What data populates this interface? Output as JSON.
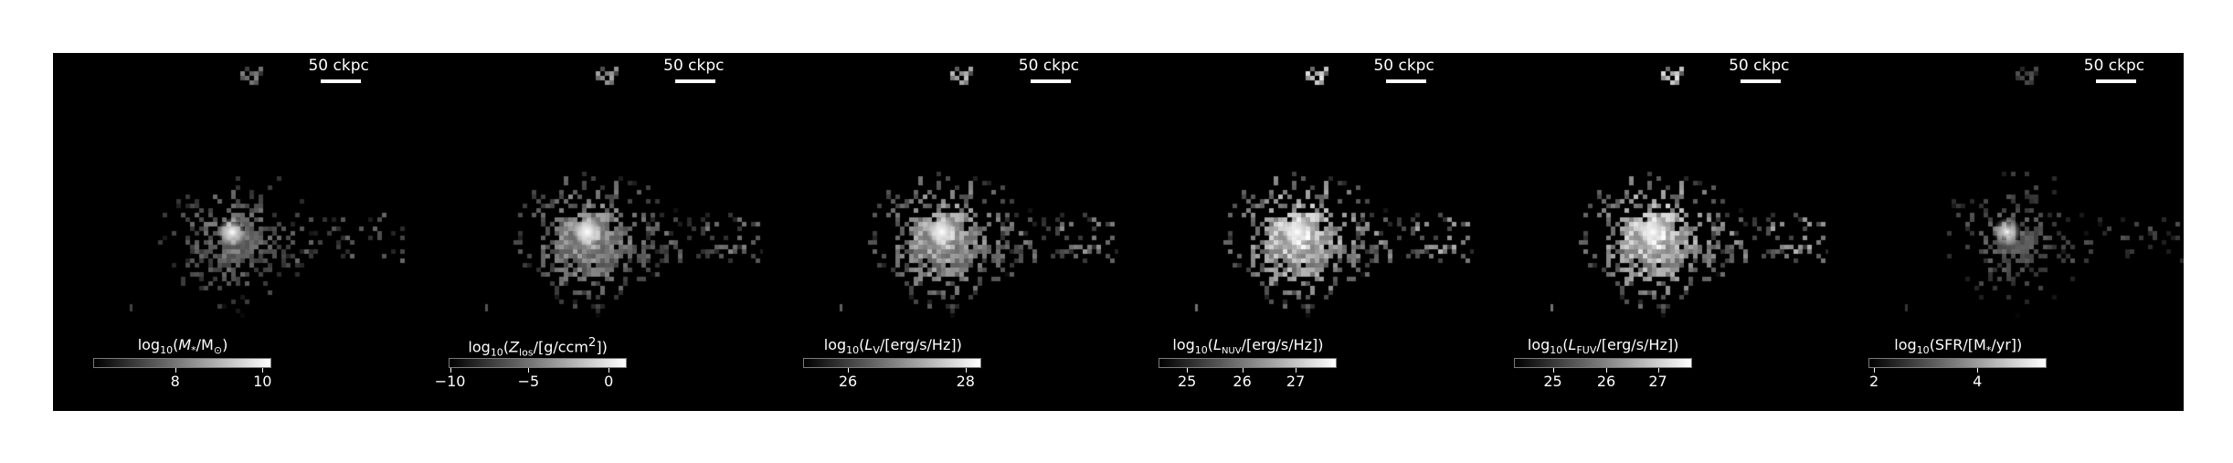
{
  "panels": [
    {
      "scale_label": "50 ckpc",
      "cbar": {
        "pre": "log",
        "sub": "10",
        "mid": "(",
        "q": "M",
        "qsub": "*",
        "rest": "/M",
        "rsub": "⊙",
        "tail": ")"
      },
      "ticks": [
        "8",
        "10"
      ],
      "tick_pos": [
        0.46,
        0.95
      ],
      "brightness": 0.55,
      "spread": 0.55
    },
    {
      "scale_label": "50 ckpc",
      "cbar": {
        "pre": "log",
        "sub": "10",
        "mid": "(",
        "q": "Z",
        "qsub": "los",
        "rest": "/[g/ccm",
        "rsup": "2",
        "tail": "])"
      },
      "ticks": [
        "−10",
        "−5",
        "0"
      ],
      "tick_pos": [
        0.01,
        0.45,
        0.9
      ],
      "brightness": 0.7,
      "spread": 1.0
    },
    {
      "scale_label": "50 ckpc",
      "cbar": {
        "pre": "log",
        "sub": "10",
        "mid": "(",
        "q": "L",
        "qsub": "V",
        "rest": "/[erg/s/Hz])",
        "tail": ""
      },
      "ticks": [
        "26",
        "28"
      ],
      "tick_pos": [
        0.25,
        0.91
      ],
      "brightness": 0.8,
      "spread": 1.0
    },
    {
      "scale_label": "50 ckpc",
      "cbar": {
        "pre": "log",
        "sub": "10",
        "mid": "(",
        "q": "L",
        "qsub": "NUV",
        "rest": "/[erg/s/Hz])",
        "tail": ""
      },
      "ticks": [
        "25",
        "26",
        "27"
      ],
      "tick_pos": [
        0.16,
        0.47,
        0.77
      ],
      "brightness": 0.95,
      "spread": 1.0
    },
    {
      "scale_label": "50 ckpc",
      "cbar": {
        "pre": "log",
        "sub": "10",
        "mid": "(",
        "q": "L",
        "qsub": "FUV",
        "rest": "/[erg/s/Hz])",
        "tail": ""
      },
      "ticks": [
        "25",
        "26",
        "27"
      ],
      "tick_pos": [
        0.22,
        0.52,
        0.81
      ],
      "brightness": 0.95,
      "spread": 1.0
    },
    {
      "scale_label": "50 ckpc",
      "cbar": {
        "pre": "log",
        "sub": "10",
        "mid": "(SFR/[M",
        "q": "",
        "qsub": "*",
        "rest": "/yr])",
        "tail": ""
      },
      "ticks": [
        "2",
        "4"
      ],
      "tick_pos": [
        0.03,
        0.61
      ],
      "brightness": 0.45,
      "spread": 0.3
    }
  ]
}
